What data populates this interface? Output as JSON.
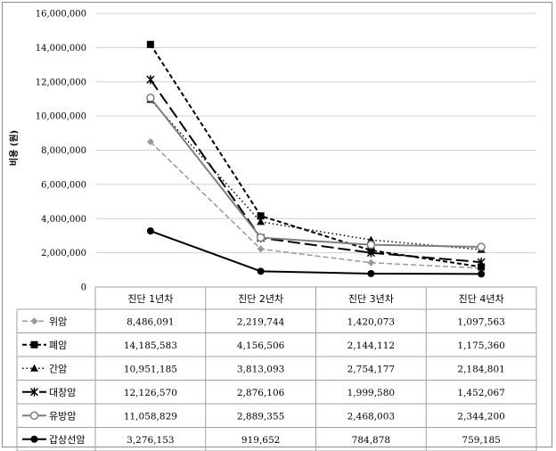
{
  "chart_data": {
    "type": "line",
    "ylabel": "비용 (원)",
    "ylim": [
      0,
      16000000
    ],
    "yticks": [
      0,
      2000000,
      4000000,
      6000000,
      8000000,
      10000000,
      12000000,
      14000000,
      16000000
    ],
    "ytick_labels": [
      "0",
      "2,000,000",
      "4,000,000",
      "6,000,000",
      "8,000,000",
      "10,000,000",
      "12,000,000",
      "14,000,000",
      "16,000,000"
    ],
    "categories": [
      "진단 1년차",
      "진단 2년차",
      "진단 3년차",
      "진단 4년차"
    ],
    "grid": true,
    "legend": "data-table",
    "series": [
      {
        "name": "위암",
        "values": [
          8486091,
          2219744,
          1420073,
          1097563
        ],
        "labels": [
          "8,486,091",
          "2,219,744",
          "1,420,073",
          "1,097,563"
        ],
        "color": "#999999",
        "dash": "6,3",
        "width": 1.5,
        "marker": "diamond"
      },
      {
        "name": "폐암",
        "values": [
          14185583,
          4156506,
          2144112,
          1175360
        ],
        "labels": [
          "14,185,583",
          "4,156,506",
          "2,144,112",
          "1,175,360"
        ],
        "color": "#000000",
        "dash": "5,3",
        "width": 2,
        "marker": "square"
      },
      {
        "name": "간암",
        "values": [
          10951185,
          3813093,
          2754177,
          2184801
        ],
        "labels": [
          "10,951,185",
          "3,813,093",
          "2,754,177",
          "2,184,801"
        ],
        "color": "#000000",
        "dash": "1.5,3",
        "width": 1.5,
        "marker": "triangle"
      },
      {
        "name": "대장암",
        "values": [
          12126570,
          2876106,
          1999580,
          1452067
        ],
        "labels": [
          "12,126,570",
          "2,876,106",
          "1,999,580",
          "1,452,067"
        ],
        "color": "#000000",
        "dash": "14,5",
        "width": 2,
        "marker": "star"
      },
      {
        "name": "유방암",
        "values": [
          11058829,
          2889355,
          2468003,
          2344200
        ],
        "labels": [
          "11,058,829",
          "2,889,355",
          "2,468,003",
          "2,344,200"
        ],
        "color": "#7f7f7f",
        "dash": "",
        "width": 2,
        "marker": "circle-open"
      },
      {
        "name": "갑상선암",
        "values": [
          3276153,
          919652,
          784878,
          759185
        ],
        "labels": [
          "3,276,153",
          "919,652",
          "784,878",
          "759,185"
        ],
        "color": "#000000",
        "dash": "",
        "width": 2,
        "marker": "circle"
      }
    ]
  }
}
